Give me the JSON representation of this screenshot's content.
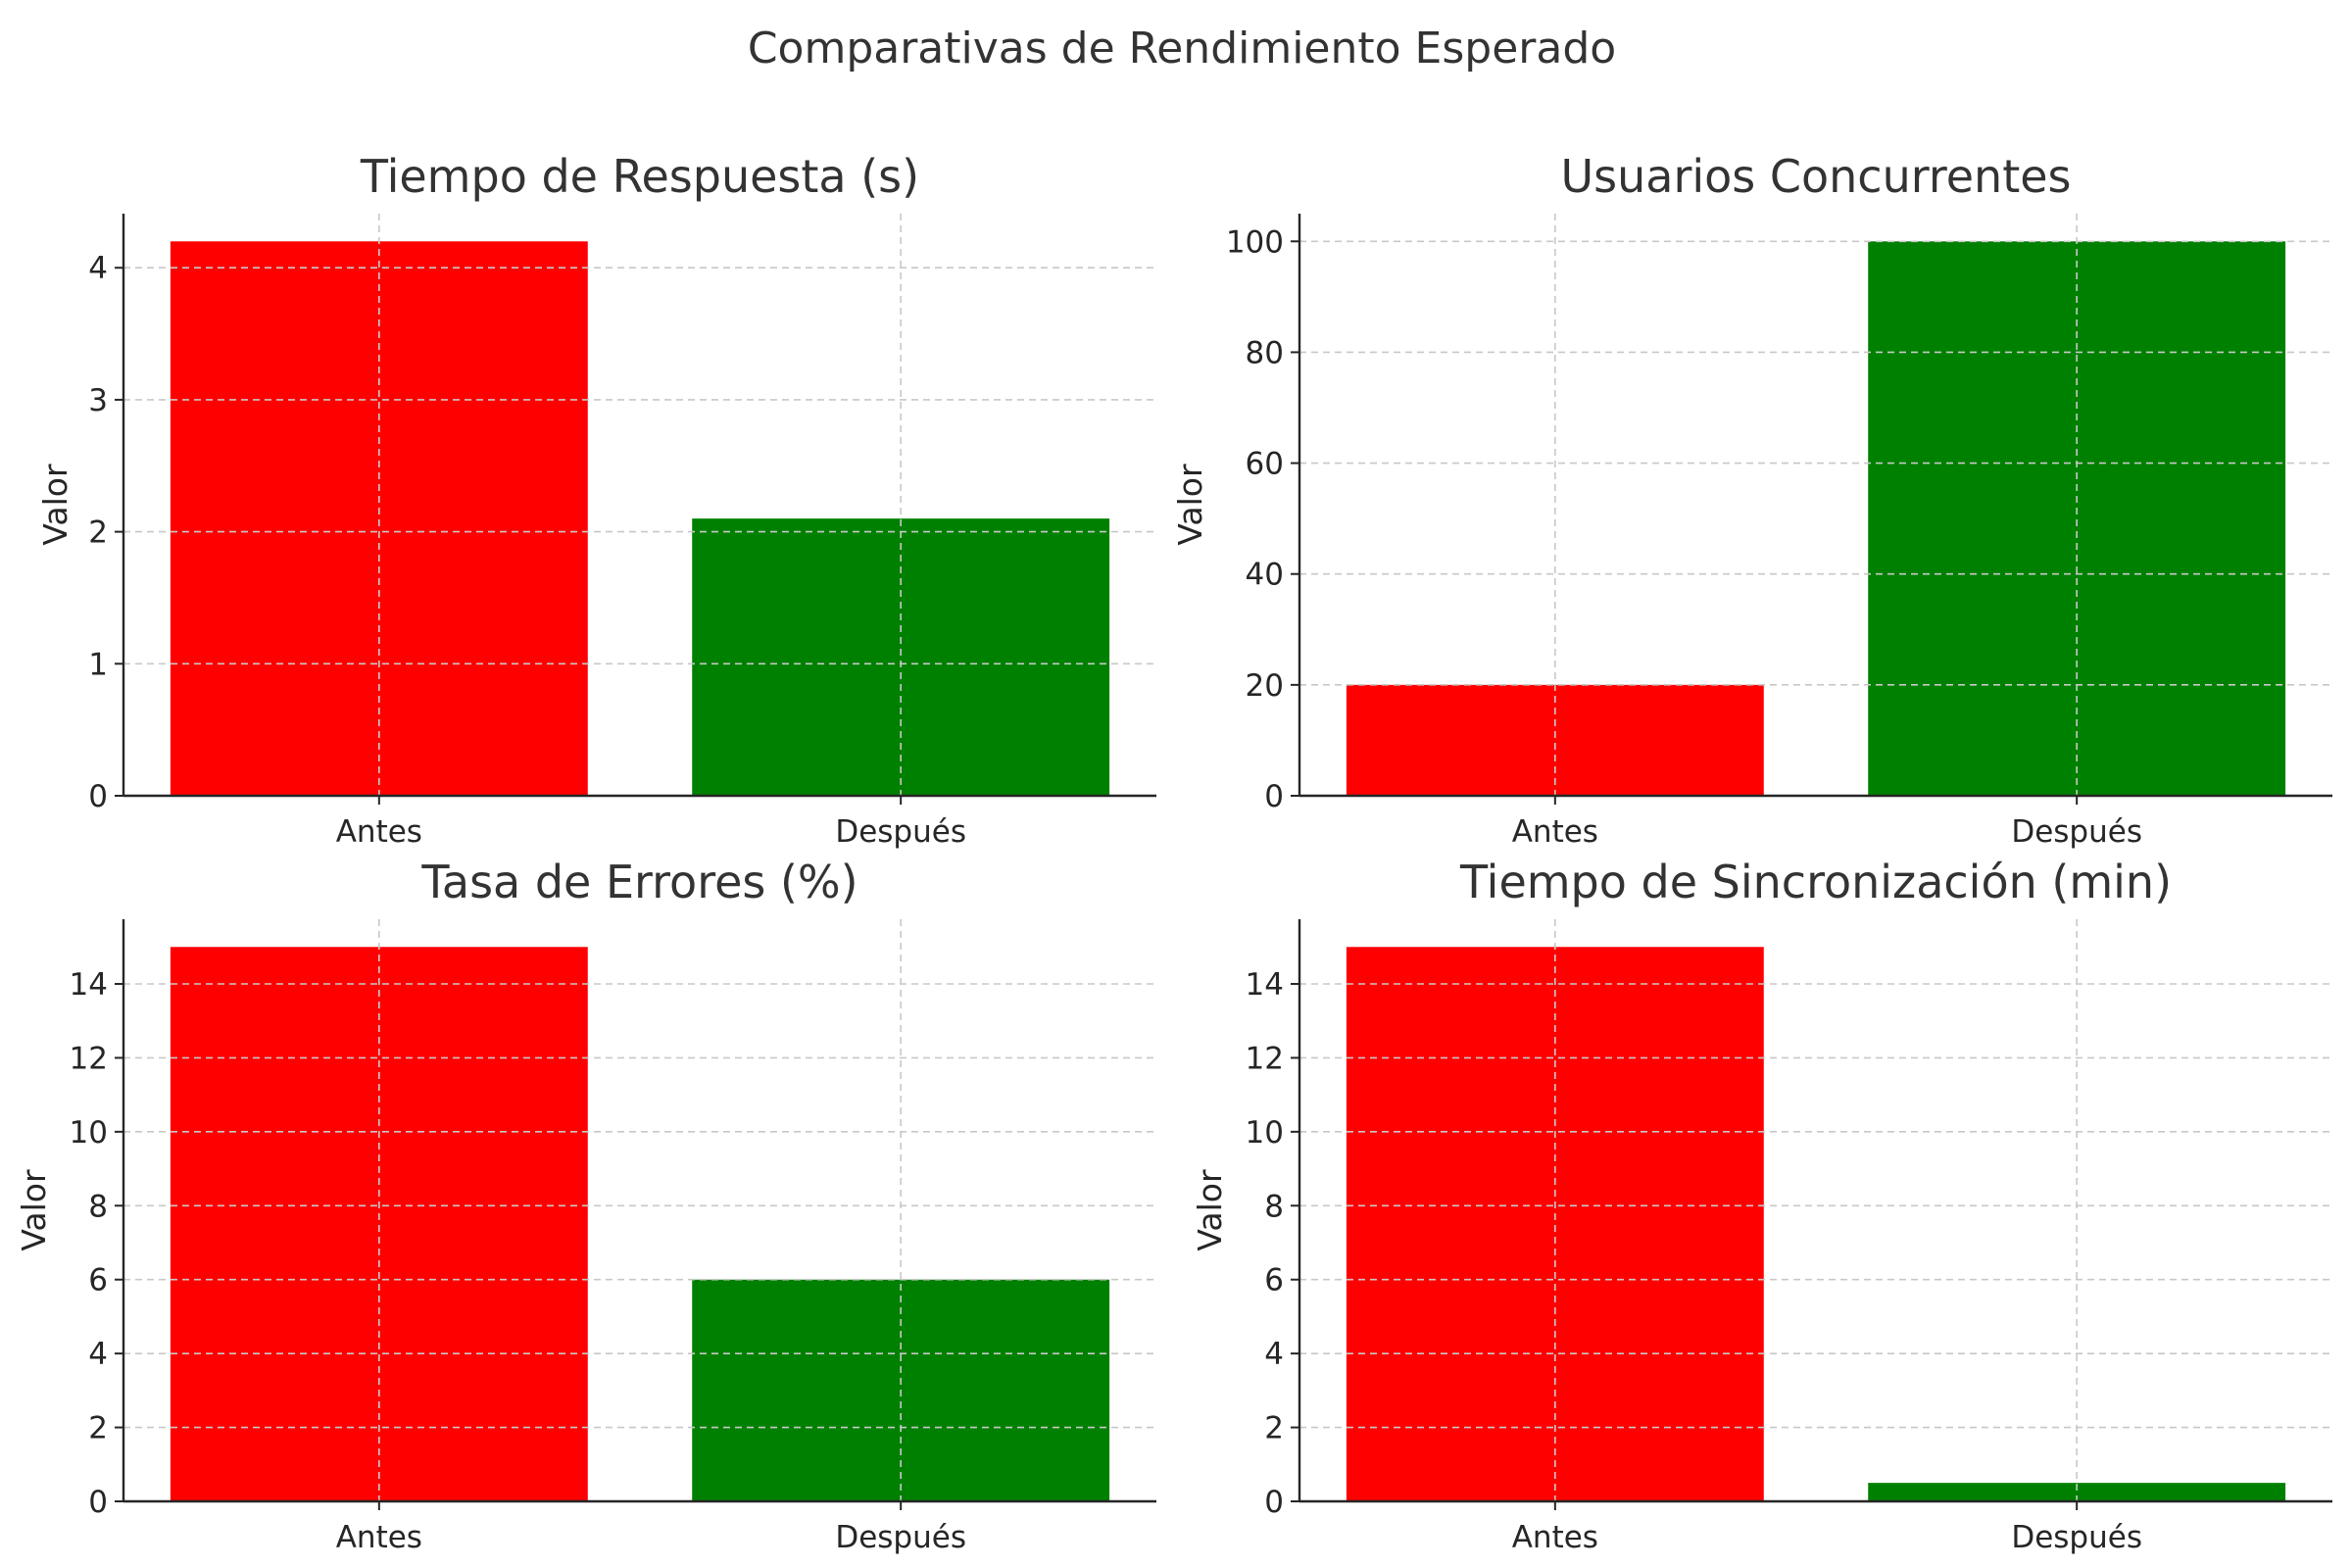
{
  "figure": {
    "title": "Comparativas de Rendimiento Esperado"
  },
  "chart_data": [
    {
      "type": "bar",
      "title": "Tiempo de Respuesta (s)",
      "ylabel": "Valor",
      "xlabel": "",
      "categories": [
        "Antes",
        "Después"
      ],
      "values": [
        4.2,
        2.1
      ],
      "colors": [
        "#ff0000",
        "#008000"
      ],
      "ylim": [
        0,
        4.41
      ],
      "yticks": [
        0,
        1,
        2,
        3,
        4
      ],
      "grid": true
    },
    {
      "type": "bar",
      "title": "Usuarios Concurrentes",
      "ylabel": "Valor",
      "xlabel": "",
      "categories": [
        "Antes",
        "Después"
      ],
      "values": [
        20,
        100
      ],
      "colors": [
        "#ff0000",
        "#008000"
      ],
      "ylim": [
        0,
        105
      ],
      "yticks": [
        0,
        20,
        40,
        60,
        80,
        100
      ],
      "grid": true
    },
    {
      "type": "bar",
      "title": "Tasa de Errores (%)",
      "ylabel": "Valor",
      "xlabel": "",
      "categories": [
        "Antes",
        "Después"
      ],
      "values": [
        15,
        6
      ],
      "colors": [
        "#ff0000",
        "#008000"
      ],
      "ylim": [
        0,
        15.75
      ],
      "yticks": [
        0,
        2,
        4,
        6,
        8,
        10,
        12,
        14
      ],
      "grid": true
    },
    {
      "type": "bar",
      "title": "Tiempo de Sincronización (min)",
      "ylabel": "Valor",
      "xlabel": "",
      "categories": [
        "Antes",
        "Después"
      ],
      "values": [
        15,
        0.5
      ],
      "colors": [
        "#ff0000",
        "#008000"
      ],
      "ylim": [
        0,
        15.75
      ],
      "yticks": [
        0,
        2,
        4,
        6,
        8,
        10,
        12,
        14
      ],
      "grid": true
    }
  ]
}
